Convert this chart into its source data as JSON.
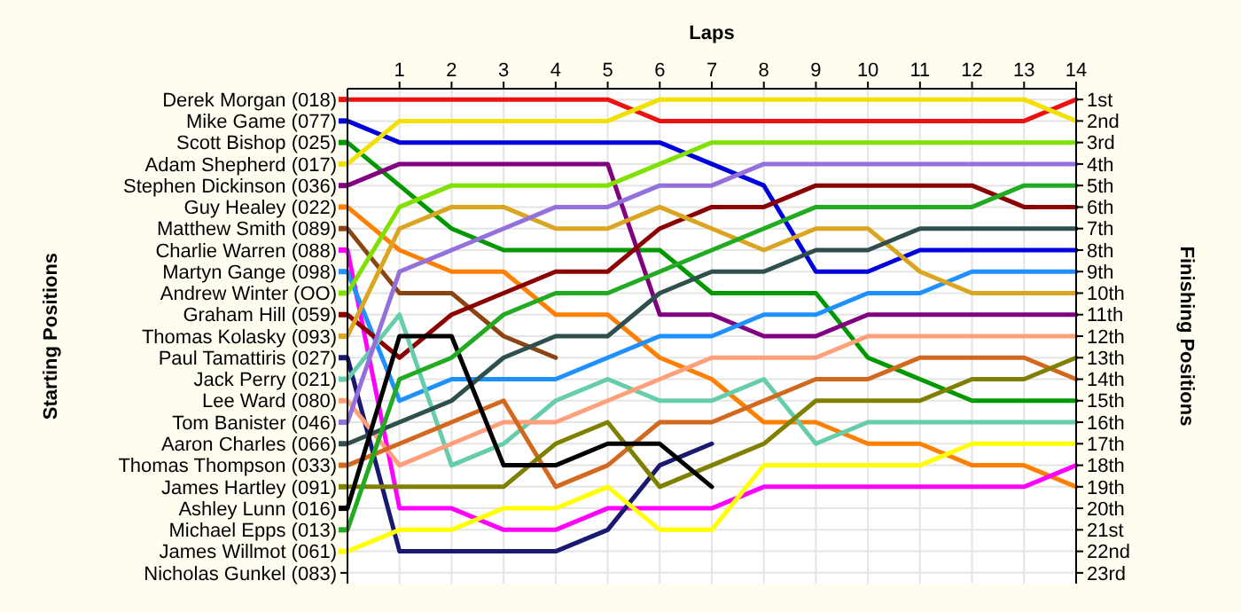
{
  "chart_data": {
    "type": "line",
    "xlabel": "Laps",
    "legend_title": "Starting Positions",
    "legend": "left",
    "annotations": [
      "Nicholas Gunkel (083)"
    ],
    "y2label": "Finishing Positions",
    "x": [
      0,
      1,
      2,
      3,
      4,
      5,
      6,
      7,
      8,
      9,
      10,
      11,
      12,
      13,
      14
    ],
    "xlim": [
      0,
      14
    ],
    "xticks": [
      1,
      2,
      3,
      4,
      5,
      6,
      7,
      8,
      9,
      10,
      11,
      12,
      13,
      14
    ],
    "y2lim": [
      23.5,
      0.5
    ],
    "y2ticks": [
      {
        "value": 1,
        "label": "1st"
      },
      {
        "value": 2,
        "label": "2nd"
      },
      {
        "value": 3,
        "label": "3rd"
      },
      {
        "value": 4,
        "label": "4th"
      },
      {
        "value": 5,
        "label": "5th"
      },
      {
        "value": 6,
        "label": "6th"
      },
      {
        "value": 7,
        "label": "7th"
      },
      {
        "value": 8,
        "label": "8th"
      },
      {
        "value": 9,
        "label": "9th"
      },
      {
        "value": 10,
        "label": "10th"
      },
      {
        "value": 11,
        "label": "11th"
      },
      {
        "value": 12,
        "label": "12th"
      },
      {
        "value": 13,
        "label": "13th"
      },
      {
        "value": 14,
        "label": "14th"
      },
      {
        "value": 15,
        "label": "15th"
      },
      {
        "value": 16,
        "label": "16th"
      },
      {
        "value": 17,
        "label": "17th"
      },
      {
        "value": 18,
        "label": "18th"
      },
      {
        "value": 19,
        "label": "19th"
      },
      {
        "value": 20,
        "label": "20th"
      },
      {
        "value": 21,
        "label": "21st"
      },
      {
        "value": 22,
        "label": "22nd"
      },
      {
        "value": 23,
        "label": "23rd"
      }
    ],
    "grid": true,
    "marker": "none",
    "line_style": "solid",
    "series": [
      {
        "name": "Derek Morgan (018)",
        "axis": "y2",
        "color": "#ee1111",
        "values": [
          1,
          1,
          1,
          1,
          1,
          1,
          2,
          2,
          2,
          2,
          2,
          2,
          2,
          2,
          1
        ]
      },
      {
        "name": "Mike Game (077)",
        "axis": "y2",
        "color": "#0000dd",
        "values": [
          2,
          3,
          3,
          3,
          3,
          3,
          3,
          4,
          5,
          9,
          9,
          8,
          8,
          8,
          8
        ]
      },
      {
        "name": "Scott Bishop (025)",
        "axis": "y2",
        "color": "#009900",
        "values": [
          3,
          5,
          7,
          8,
          8,
          8,
          8,
          10,
          10,
          10,
          13,
          14,
          15,
          15,
          15
        ]
      },
      {
        "name": "Adam Shepherd (017)",
        "axis": "y2",
        "color": "#f2e000",
        "values": [
          4,
          2,
          2,
          2,
          2,
          2,
          1,
          1,
          1,
          1,
          1,
          1,
          1,
          1,
          2
        ]
      },
      {
        "name": "Stephen Dickinson (036)",
        "axis": "y2",
        "color": "#800080",
        "values": [
          5,
          4,
          4,
          4,
          4,
          4,
          11,
          11,
          12,
          12,
          11,
          11,
          11,
          11,
          11
        ]
      },
      {
        "name": "Guy Healey (022)",
        "axis": "y2",
        "color": "#ff8000",
        "values": [
          6,
          8,
          9,
          9,
          11,
          11,
          13,
          14,
          16,
          16,
          17,
          17,
          18,
          18,
          19
        ]
      },
      {
        "name": "Matthew Smith (089)",
        "axis": "y2",
        "color": "#8b4513",
        "values": [
          7,
          10,
          10,
          12,
          13,
          null,
          null,
          null,
          null,
          null,
          null,
          null,
          null,
          null,
          null
        ]
      },
      {
        "name": "Charlie Warren (088)",
        "axis": "y2",
        "color": "#ff00ff",
        "values": [
          8,
          20,
          20,
          21,
          21,
          20,
          20,
          20,
          19,
          19,
          19,
          19,
          19,
          19,
          18
        ]
      },
      {
        "name": "Martyn Gange (098)",
        "axis": "y2",
        "color": "#1e90ff",
        "values": [
          9,
          15,
          14,
          14,
          14,
          13,
          12,
          12,
          11,
          11,
          10,
          10,
          9,
          9,
          9
        ]
      },
      {
        "name": "Andrew Winter (OO)",
        "axis": "y2",
        "color": "#80e000",
        "values": [
          10,
          6,
          5,
          5,
          5,
          5,
          4,
          3,
          3,
          3,
          3,
          3,
          3,
          3,
          3
        ]
      },
      {
        "name": "Graham Hill (059)",
        "axis": "y2",
        "color": "#8b0000",
        "values": [
          11,
          13,
          11,
          10,
          9,
          9,
          7,
          6,
          6,
          5,
          5,
          5,
          5,
          6,
          6
        ]
      },
      {
        "name": "Thomas Kolasky (093)",
        "axis": "y2",
        "color": "#daa520",
        "values": [
          12,
          7,
          6,
          6,
          7,
          7,
          6,
          7,
          8,
          7,
          7,
          9,
          10,
          10,
          10
        ]
      },
      {
        "name": "Paul Tamattiris (027)",
        "axis": "y2",
        "color": "#191970",
        "values": [
          13,
          22,
          22,
          22,
          22,
          21,
          18,
          17,
          null,
          null,
          null,
          null,
          null,
          null,
          null
        ]
      },
      {
        "name": "Jack Perry (021)",
        "axis": "y2",
        "color": "#66cdaa",
        "values": [
          14,
          11,
          18,
          17,
          15,
          14,
          15,
          15,
          14,
          17,
          16,
          16,
          16,
          16,
          16
        ]
      },
      {
        "name": "Lee Ward (080)",
        "axis": "y2",
        "color": "#ffa07a",
        "values": [
          15,
          18,
          17,
          16,
          16,
          15,
          14,
          13,
          13,
          13,
          12,
          12,
          12,
          12,
          12
        ]
      },
      {
        "name": "Tom Banister (046)",
        "axis": "y2",
        "color": "#9370db",
        "values": [
          16,
          9,
          8,
          7,
          6,
          6,
          5,
          5,
          4,
          4,
          4,
          4,
          4,
          4,
          4
        ]
      },
      {
        "name": "Aaron Charles (066)",
        "axis": "y2",
        "color": "#2f4f4f",
        "values": [
          17,
          16,
          15,
          13,
          12,
          12,
          10,
          9,
          9,
          8,
          8,
          7,
          7,
          7,
          7
        ]
      },
      {
        "name": "Thomas Thompson (033)",
        "axis": "y2",
        "color": "#d2691e",
        "values": [
          18,
          17,
          16,
          15,
          19,
          18,
          16,
          16,
          15,
          14,
          14,
          13,
          13,
          13,
          14
        ]
      },
      {
        "name": "James Hartley (091)",
        "axis": "y2",
        "color": "#808000",
        "values": [
          19,
          19,
          19,
          19,
          17,
          16,
          19,
          18,
          17,
          15,
          15,
          15,
          14,
          14,
          13
        ]
      },
      {
        "name": "Ashley Lunn (016)",
        "axis": "y2",
        "color": "#000000",
        "values": [
          20,
          12,
          12,
          18,
          18,
          17,
          17,
          19,
          null,
          null,
          null,
          null,
          null,
          null,
          null
        ]
      },
      {
        "name": "Michael Epps (013)",
        "axis": "y2",
        "color": "#22aa22",
        "values": [
          21,
          14,
          13,
          11,
          10,
          10,
          9,
          8,
          7,
          6,
          6,
          6,
          6,
          5,
          5
        ]
      },
      {
        "name": "James Willmot (061)",
        "axis": "y2",
        "color": "#ffff00",
        "values": [
          22,
          21,
          21,
          20,
          20,
          19,
          21,
          21,
          18,
          18,
          18,
          18,
          17,
          17,
          17
        ]
      }
    ]
  }
}
